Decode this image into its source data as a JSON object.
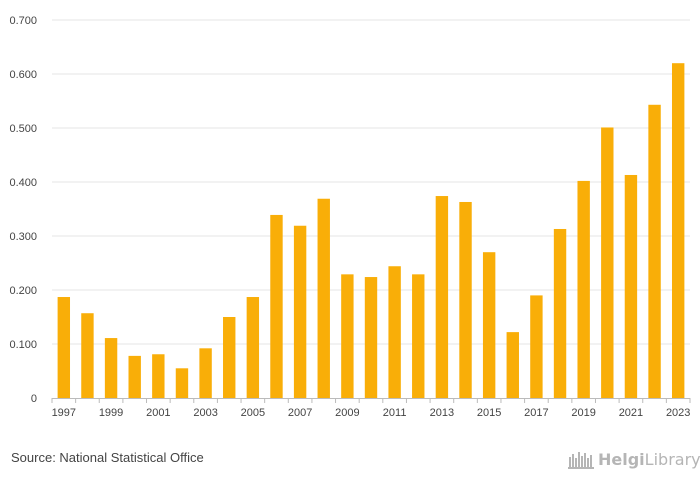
{
  "chart_data": {
    "type": "bar",
    "title": "",
    "xlabel": "",
    "ylabel": "",
    "ylim": [
      0,
      0.7
    ],
    "yticks": [
      "0",
      "0.100",
      "0.200",
      "0.300",
      "0.400",
      "0.500",
      "0.600",
      "0.700"
    ],
    "ytick_values": [
      0,
      0.1,
      0.2,
      0.3,
      0.4,
      0.5,
      0.6,
      0.7
    ],
    "categories": [
      "1997",
      "1998",
      "1999",
      "2000",
      "2001",
      "2002",
      "2003",
      "2004",
      "2005",
      "2006",
      "2007",
      "2008",
      "2009",
      "2010",
      "2011",
      "2012",
      "2013",
      "2014",
      "2015",
      "2016",
      "2017",
      "2018",
      "2019",
      "2020",
      "2021",
      "2022",
      "2023"
    ],
    "xtick_labels": [
      "1997",
      "1999",
      "2001",
      "2003",
      "2005",
      "2007",
      "2009",
      "2011",
      "2013",
      "2015",
      "2017",
      "2019",
      "2021",
      "2023"
    ],
    "values": [
      0.187,
      0.157,
      0.111,
      0.078,
      0.081,
      0.055,
      0.092,
      0.15,
      0.187,
      0.339,
      0.319,
      0.369,
      0.229,
      0.224,
      0.244,
      0.229,
      0.374,
      0.363,
      0.27,
      0.122,
      0.19,
      0.313,
      0.402,
      0.501,
      0.413,
      0.543,
      0.62
    ],
    "bar_color": "#f9ae08",
    "grid": true
  },
  "footer": {
    "source": "Source: National Statistical Office",
    "logo_part1": "Helgi",
    "logo_part2": "Library."
  }
}
